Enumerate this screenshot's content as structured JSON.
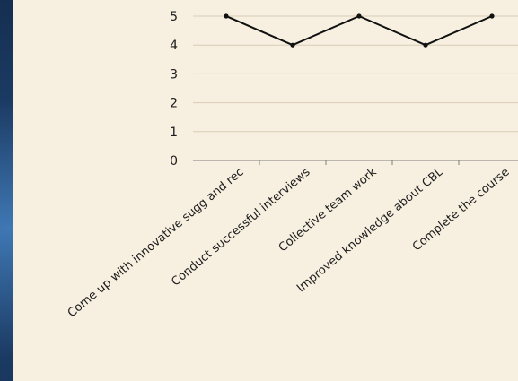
{
  "chart_data": {
    "type": "line",
    "categories": [
      "Come up with innovative sugg and rec",
      "Conduct successful interviews",
      "Collective team work",
      "Improved knowledge about CBL",
      "Complete the course"
    ],
    "series": [
      {
        "values": [
          5,
          4,
          5,
          4,
          5
        ]
      }
    ],
    "ylim": [
      0,
      5
    ],
    "yticks": [
      "0",
      "1",
      "2",
      "3",
      "4",
      "5"
    ],
    "grid": true,
    "legend": "none",
    "colors": {
      "line": "#111111",
      "grid": "#d9cdb6",
      "axis": "#7f7f7f",
      "panel": "#f7efe0"
    }
  }
}
